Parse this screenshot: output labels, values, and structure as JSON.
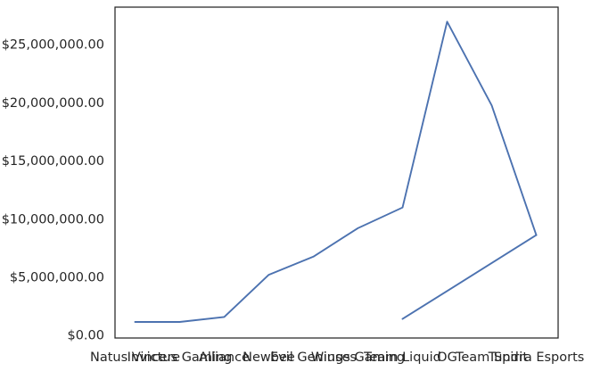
{
  "chart_data": {
    "type": "line",
    "title": "",
    "xlabel": "",
    "ylabel": "",
    "categories": [
      "Natus Vincere",
      "Invictus Gaming",
      "Alliance",
      "Newbee",
      "Evil Geniuses",
      "Wings Gaming",
      "Team Liquid",
      "OG",
      "Team Spirit",
      "Tundra Esports"
    ],
    "series": [
      {
        "values": [
          1131000,
          1131000,
          1560000,
          5185000,
          6740000,
          9200000,
          10970000,
          26950000,
          19750000,
          8600000
        ],
        "color": "#4c72b0"
      },
      {
        "values": [
          null,
          null,
          null,
          null,
          null,
          null,
          1390000,
          null,
          null,
          8600000
        ],
        "color": "#4c72b0"
      }
    ],
    "ylim": [
      -250000,
      28200000
    ],
    "yticks": [
      0,
      5000000,
      10000000,
      15000000,
      20000000,
      25000000
    ],
    "ytick_labels": [
      "$0.00",
      "$5,000,000.00",
      "$10,000,000.00",
      "$15,000,000.00",
      "$20,000,000.00",
      "$25,000,000.00"
    ],
    "grid": false,
    "legend": false
  }
}
